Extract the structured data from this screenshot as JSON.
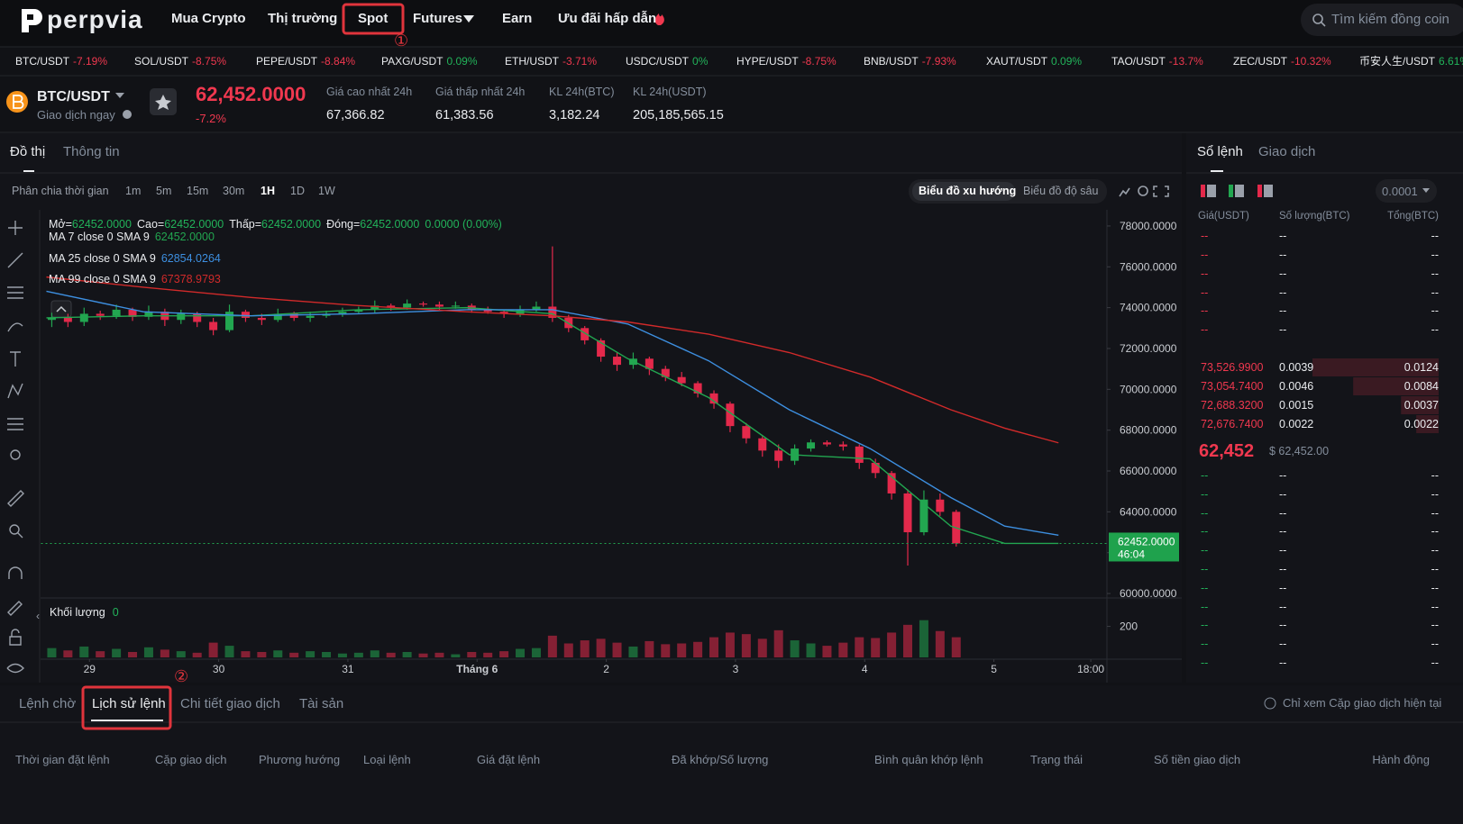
{
  "nav": {
    "logo": "perpvia",
    "menu": [
      "Mua Crypto",
      "Thị trường",
      "Spot",
      "Futures",
      "Earn",
      "Ưu đãi hấp dẫn"
    ],
    "search": "Tìm kiếm đồng coin"
  },
  "annotations": [
    "①",
    "②"
  ],
  "ticker": [
    {
      "pair": "BTC/USDT",
      "change": "-7.19%"
    },
    {
      "pair": "SOL/USDT",
      "change": "-8.75%"
    },
    {
      "pair": "PEPE/USDT",
      "change": "-8.84%"
    },
    {
      "pair": "PAXG/USDT",
      "change": "0.09%"
    },
    {
      "pair": "ETH/USDT",
      "change": "-3.71%"
    },
    {
      "pair": "USDC/USDT",
      "change": "0%"
    },
    {
      "pair": "HYPE/USDT",
      "change": "-8.75%"
    },
    {
      "pair": "BNB/USDT",
      "change": "-7.93%"
    },
    {
      "pair": "XAUT/USDT",
      "change": "0.09%"
    },
    {
      "pair": "TAO/USDT",
      "change": "-13.7%"
    },
    {
      "pair": "ZEC/USDT",
      "change": "-10.32%"
    },
    {
      "pair": "币安人生/USDT",
      "change": "6.61%"
    }
  ],
  "symbol": {
    "pair": "BTC/USDT",
    "action": "Giao dịch ngay",
    "price": "62,452.0000",
    "change": "-7.2%",
    "stats": [
      {
        "label": "Giá cao nhất 24h",
        "value": "67,366.82"
      },
      {
        "label": "Giá thấp nhất 24h",
        "value": "61,383.56"
      },
      {
        "label": "KL 24h(BTC)",
        "value": "3,182.24"
      },
      {
        "label": "KL 24h(USDT)",
        "value": "205,185,565.15"
      }
    ]
  },
  "chart_tabs": [
    "Đồ thị",
    "Thông tin"
  ],
  "toolbar": {
    "label": "Phân chia thời gian",
    "intervals": [
      "1m",
      "5m",
      "15m",
      "30m",
      "1H",
      "1D",
      "1W"
    ],
    "views": [
      "Biểu đồ xu hướng",
      "Biểu đồ độ sâu"
    ]
  },
  "chart_data": {
    "type": "candlestick",
    "up_color": "#22a650",
    "down_color": "#e3294b",
    "ohlc_legend": [
      {
        "label": "Mở=",
        "value": "62452.0000"
      },
      {
        "label": "Cao=",
        "value": "62452.0000"
      },
      {
        "label": "Thấp=",
        "value": "62452.0000"
      },
      {
        "label": "Đóng=",
        "value": "62452.0000"
      }
    ],
    "change": "0.0000 (0.00%)",
    "x": [
      -7,
      -4,
      -1,
      2,
      5,
      8,
      11,
      14,
      17,
      20,
      23,
      26,
      29,
      32,
      35,
      38,
      41,
      44,
      47,
      50,
      53,
      56,
      59,
      62,
      65,
      68,
      71,
      74,
      77,
      80,
      83,
      86,
      89,
      92,
      95,
      98,
      101,
      104,
      107,
      110,
      113,
      116,
      119,
      122,
      125,
      128,
      131,
      134,
      137,
      140,
      143,
      146,
      149,
      152,
      155,
      158,
      161
    ],
    "open": [
      73400,
      73500,
      73300,
      73700,
      73600,
      73900,
      73550,
      73800,
      73400,
      73700,
      73300,
      72900,
      73800,
      73500,
      73400,
      73700,
      73500,
      73600,
      73700,
      73800,
      73900,
      74100,
      74000,
      74200,
      74150,
      74050,
      74100,
      73900,
      73800,
      73700,
      73900,
      74050,
      73500,
      73000,
      72400,
      71600,
      71200,
      71500,
      71000,
      70600,
      70300,
      69800,
      69300,
      68200,
      67600,
      67000,
      66500,
      67100,
      67400,
      67300,
      67200,
      66400,
      65900,
      64900,
      63000,
      64600,
      64000
    ],
    "high": [
      73750,
      73700,
      74000,
      73850,
      74150,
      74000,
      74100,
      73950,
      73900,
      73800,
      73500,
      74150,
      73900,
      73700,
      73950,
      73800,
      73800,
      73850,
      74000,
      74050,
      74350,
      74200,
      74400,
      74300,
      74300,
      74300,
      74200,
      74050,
      73900,
      74100,
      74300,
      77000,
      73650,
      73100,
      72500,
      71800,
      71800,
      71600,
      71150,
      70850,
      70400,
      69950,
      69400,
      68350,
      67700,
      67300,
      67300,
      67550,
      67500,
      67450,
      67300,
      66600,
      66000,
      65100,
      65050,
      64900,
      64100
    ],
    "low": [
      73050,
      73050,
      73100,
      73400,
      73450,
      73350,
      73400,
      73100,
      73200,
      73050,
      72650,
      72800,
      73300,
      73150,
      73300,
      73350,
      73300,
      73500,
      73550,
      73700,
      73750,
      73850,
      73900,
      74050,
      73850,
      73950,
      73750,
      73700,
      73500,
      73550,
      73800,
      73300,
      72800,
      72200,
      71350,
      70900,
      71000,
      70700,
      70400,
      70150,
      69600,
      69050,
      67900,
      67350,
      66700,
      66150,
      66300,
      66950,
      67200,
      67000,
      66100,
      65650,
      64600,
      61370,
      62850,
      63800,
      62300
    ],
    "close": [
      73500,
      73300,
      73700,
      73600,
      73900,
      73550,
      73800,
      73400,
      73700,
      73300,
      72900,
      73800,
      73500,
      73400,
      73700,
      73500,
      73600,
      73700,
      73800,
      73900,
      74100,
      74000,
      74200,
      74150,
      74050,
      74100,
      73900,
      73800,
      73700,
      73900,
      74050,
      73500,
      73000,
      72400,
      71600,
      71200,
      71500,
      71000,
      70600,
      70300,
      69800,
      69300,
      68200,
      67600,
      67000,
      66500,
      67100,
      67400,
      67300,
      67200,
      66400,
      65900,
      64900,
      63000,
      64600,
      64000,
      62452
    ],
    "series": [
      {
        "name": "MA 7 close 0 SMA 9",
        "color": "#22a650",
        "current_label": "62452.0000",
        "x": [
          -8,
          10,
          30,
          50,
          70,
          86,
          100,
          115,
          130,
          145,
          160,
          170,
          180
        ],
        "values": [
          73500,
          73600,
          73600,
          73900,
          74000,
          73700,
          71500,
          69600,
          66800,
          66600,
          63300,
          62452,
          62452
        ]
      },
      {
        "name": "MA 25 close 0 SMA 9",
        "color": "#3d8fe0",
        "current_label": "62854.0264",
        "x": [
          -8,
          10,
          30,
          50,
          70,
          86,
          100,
          115,
          130,
          145,
          160,
          170,
          180
        ],
        "values": [
          74800,
          73800,
          73600,
          73700,
          73900,
          73900,
          73200,
          71400,
          69000,
          67100,
          64700,
          63300,
          62854.0264
        ]
      },
      {
        "name": "MA 99 close 0 SMA 9",
        "color": "#d12a2a",
        "current_label": "67378.9793",
        "x": [
          -8,
          10,
          30,
          50,
          70,
          86,
          100,
          115,
          130,
          145,
          160,
          170,
          180
        ],
        "values": [
          75500,
          75000,
          74500,
          74100,
          73800,
          73600,
          73300,
          72700,
          71800,
          70600,
          69000,
          68100,
          67378.9793
        ]
      }
    ],
    "xlim": [
      -9,
      189
    ],
    "xticks": [
      {
        "value": 0,
        "label": "29"
      },
      {
        "value": 24,
        "label": "30"
      },
      {
        "value": 48,
        "label": "31"
      },
      {
        "value": 72,
        "label": "Tháng 6"
      },
      {
        "value": 96,
        "label": "2"
      },
      {
        "value": 120,
        "label": "3"
      },
      {
        "value": 144,
        "label": "4"
      },
      {
        "value": 168,
        "label": "5"
      },
      {
        "value": 186,
        "label": "18:00"
      }
    ],
    "ylim": [
      59870,
      78350
    ],
    "yticks": [
      {
        "value": 78000,
        "label": "78000.0000"
      },
      {
        "value": 76000,
        "label": "76000.0000"
      },
      {
        "value": 74000,
        "label": "74000.0000"
      },
      {
        "value": 72000,
        "label": "72000.0000"
      },
      {
        "value": 70000,
        "label": "70000.0000"
      },
      {
        "value": 68000,
        "label": "68000.0000"
      },
      {
        "value": 66000,
        "label": "66000.0000"
      },
      {
        "value": 64000,
        "label": "64000.0000"
      },
      {
        "value": 62000,
        "label": "62000.0000"
      },
      {
        "value": 60000,
        "label": "60000.0000"
      }
    ],
    "last_price": {
      "value": 62452,
      "label": "62452.0000",
      "countdown": "46:04"
    },
    "volume": {
      "title": "Khối lượng",
      "current_label": "0",
      "ylim": [
        0,
        360
      ],
      "yticks": [
        200
      ],
      "values": [
        60,
        45,
        70,
        40,
        55,
        35,
        65,
        50,
        40,
        30,
        95,
        75,
        40,
        35,
        45,
        30,
        40,
        35,
        25,
        30,
        45,
        30,
        35,
        25,
        30,
        20,
        35,
        30,
        40,
        55,
        60,
        140,
        90,
        110,
        120,
        95,
        70,
        105,
        85,
        90,
        100,
        130,
        160,
        150,
        120,
        175,
        110,
        90,
        75,
        95,
        130,
        125,
        160,
        210,
        240,
        170,
        130
      ]
    }
  },
  "orderbook": {
    "tabs": [
      "Sổ lệnh",
      "Giao dịch"
    ],
    "precision": "0.0001",
    "headers": [
      "Giá(USDT)",
      "Số lượng(BTC)",
      "Tổng(BTC)"
    ],
    "asks": [
      [
        "--",
        "--",
        "--"
      ],
      [
        "--",
        "--",
        "--"
      ],
      [
        "--",
        "--",
        "--"
      ],
      [
        "--",
        "--",
        "--"
      ],
      [
        "--",
        "--",
        "--"
      ],
      [
        "--",
        "--",
        "--"
      ],
      [
        "73,526.9900",
        "0.0039",
        "0.0124"
      ],
      [
        "73,054.7400",
        "0.0046",
        "0.0084"
      ],
      [
        "72,688.3200",
        "0.0015",
        "0.0037"
      ],
      [
        "72,676.7400",
        "0.0022",
        "0.0022"
      ]
    ],
    "last_price": "62,452",
    "last_price_usd": "$ 62,452.00",
    "bids": [
      [
        "--",
        "--",
        "--"
      ],
      [
        "--",
        "--",
        "--"
      ],
      [
        "--",
        "--",
        "--"
      ],
      [
        "--",
        "--",
        "--"
      ],
      [
        "--",
        "--",
        "--"
      ],
      [
        "--",
        "--",
        "--"
      ],
      [
        "--",
        "--",
        "--"
      ],
      [
        "--",
        "--",
        "--"
      ],
      [
        "--",
        "--",
        "--"
      ],
      [
        "--",
        "--",
        "--"
      ],
      [
        "--",
        "--",
        "--"
      ]
    ]
  },
  "orders": {
    "tabs": [
      "Lệnh chờ",
      "Lịch sử lệnh",
      "Chi tiết giao dịch",
      "Tài sản"
    ],
    "filter": "Chỉ xem Cặp giao dịch hiện tại",
    "columns": [
      "Thời gian đặt lệnh",
      "Cặp giao dịch",
      "Phương hướng",
      "Loại lệnh",
      "Giá đặt lệnh",
      "Đã khớp/Số lượng",
      "Bình quân khớp lệnh",
      "Trạng thái",
      "Số tiền giao dịch",
      "Hành động"
    ]
  }
}
